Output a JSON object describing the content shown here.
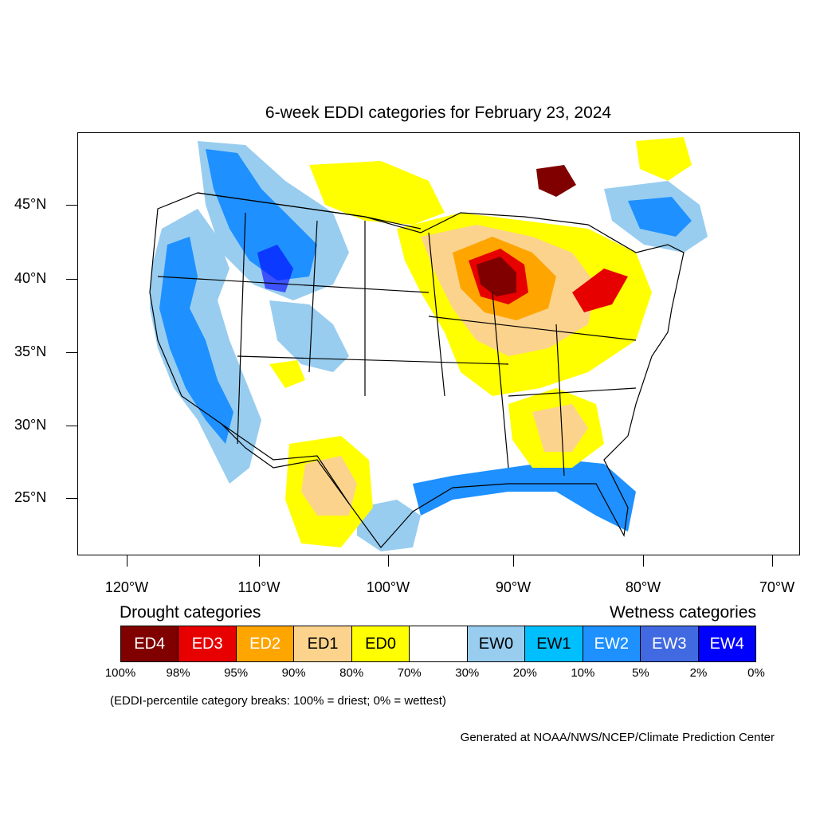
{
  "title": "6-week EDDI categories for February 23, 2024",
  "axes": {
    "lat_ticks": [
      "45°N",
      "40°N",
      "35°N",
      "30°N",
      "25°N"
    ],
    "lon_ticks": [
      "120°W",
      "110°W",
      "100°W",
      "90°W",
      "80°W",
      "70°W"
    ]
  },
  "legend": {
    "drought_heading": "Drought categories",
    "wetness_heading": "Wetness categories",
    "categories": [
      {
        "label": "ED4",
        "color": "#800000",
        "text_color": "#ffffff"
      },
      {
        "label": "ED3",
        "color": "#e60000",
        "text_color": "#ffffff"
      },
      {
        "label": "ED2",
        "color": "#ffa500",
        "text_color": "#ffffff"
      },
      {
        "label": "ED1",
        "color": "#fcd38d",
        "text_color": "#000000"
      },
      {
        "label": "ED0",
        "color": "#ffff00",
        "text_color": "#000000"
      },
      {
        "label": "",
        "color": "#ffffff",
        "text_color": "#000000"
      },
      {
        "label": "EW0",
        "color": "#98cdf0",
        "text_color": "#000000"
      },
      {
        "label": "EW1",
        "color": "#00bfff",
        "text_color": "#000000"
      },
      {
        "label": "EW2",
        "color": "#1e90ff",
        "text_color": "#ffffff"
      },
      {
        "label": "EW3",
        "color": "#4169e1",
        "text_color": "#ffffff"
      },
      {
        "label": "EW4",
        "color": "#0000ff",
        "text_color": "#ffffff"
      }
    ],
    "percentiles": [
      "100%",
      "98%",
      "95%",
      "90%",
      "80%",
      "70%",
      "30%",
      "20%",
      "10%",
      "5%",
      "2%",
      "0%"
    ]
  },
  "note": "(EDDI-percentile category breaks: 100% = driest; 0% = wettest)",
  "credit": "Generated at NOAA/NWS/NCEP/Climate Prediction Center"
}
